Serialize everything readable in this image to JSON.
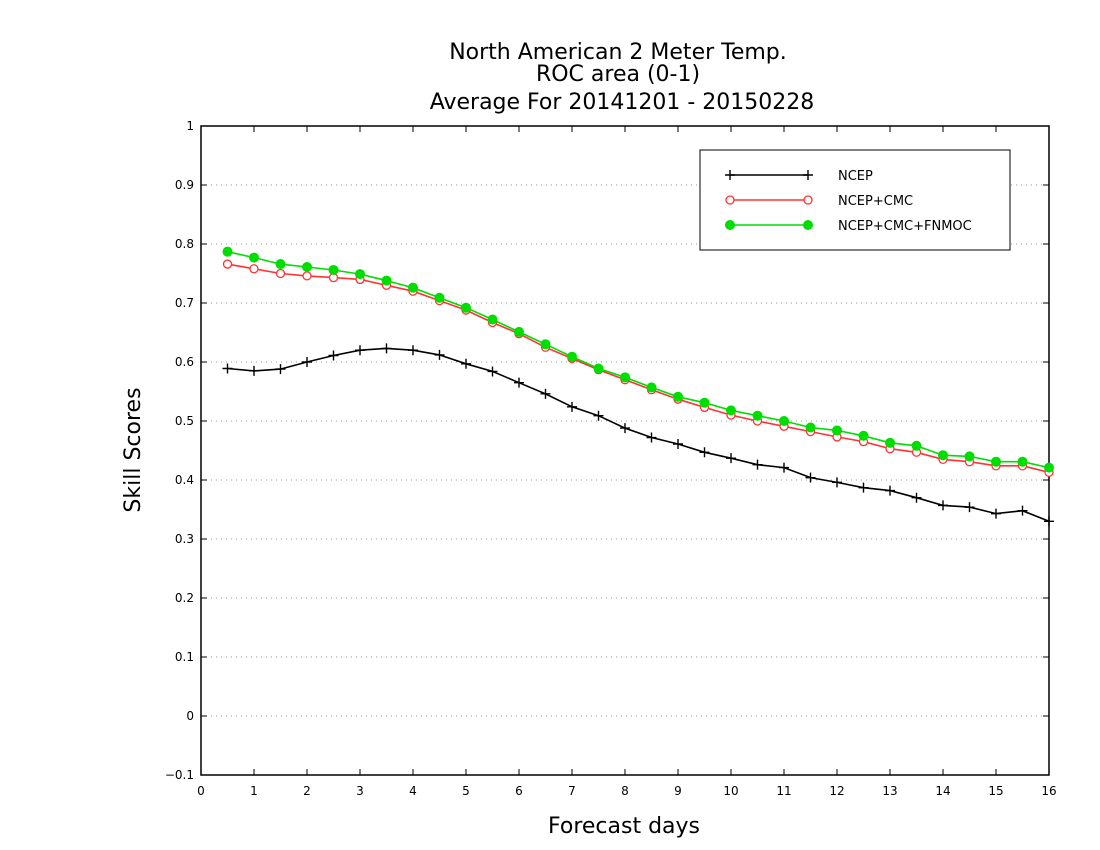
{
  "chart_data": {
    "type": "line",
    "title_lines": [
      "North American 2 Meter Temp.",
      "ROC area (0-1)",
      "Average For 20141201 - 20150228"
    ],
    "xlabel": "Forecast days",
    "ylabel": "Skill Scores",
    "xlim": [
      0,
      16
    ],
    "ylim": [
      -0.1,
      1
    ],
    "xticks": [
      "0",
      "1",
      "2",
      "3",
      "4",
      "5",
      "6",
      "7",
      "8",
      "9",
      "10",
      "11",
      "12",
      "13",
      "14",
      "15",
      "16"
    ],
    "yticks": [
      "−0.1",
      "0",
      "0.1",
      "0.2",
      "0.3",
      "0.4",
      "0.5",
      "0.6",
      "0.7",
      "0.8",
      "0.9",
      "1"
    ],
    "grid": "horizontal dotted",
    "legend_position": "top-right",
    "x": [
      0.5,
      1,
      1.5,
      2,
      2.5,
      3,
      3.5,
      4,
      4.5,
      5,
      5.5,
      6,
      6.5,
      7,
      7.5,
      8,
      8.5,
      9,
      9.5,
      10,
      10.5,
      11,
      11.5,
      12,
      12.5,
      13,
      13.5,
      14,
      14.5,
      15,
      15.5,
      16
    ],
    "series": [
      {
        "name": "NCEP",
        "color": "#000000",
        "marker": "plus",
        "values": [
          0.589,
          0.585,
          0.588,
          0.6,
          0.611,
          0.62,
          0.623,
          0.62,
          0.612,
          0.597,
          0.584,
          0.565,
          0.546,
          0.524,
          0.509,
          0.488,
          0.472,
          0.461,
          0.447,
          0.437,
          0.426,
          0.421,
          0.404,
          0.396,
          0.387,
          0.382,
          0.37,
          0.357,
          0.354,
          0.343,
          0.348,
          0.33
        ]
      },
      {
        "name": "NCEP+CMC",
        "color": "#ff3333",
        "marker": "open-circle",
        "values": [
          0.766,
          0.758,
          0.75,
          0.746,
          0.743,
          0.74,
          0.73,
          0.72,
          0.704,
          0.688,
          0.667,
          0.648,
          0.625,
          0.606,
          0.587,
          0.57,
          0.553,
          0.537,
          0.523,
          0.51,
          0.5,
          0.491,
          0.482,
          0.473,
          0.465,
          0.453,
          0.447,
          0.435,
          0.431,
          0.424,
          0.424,
          0.413
        ]
      },
      {
        "name": "NCEP+CMC+FNMOC",
        "color": "#00dd00",
        "marker": "filled-circle",
        "values": [
          0.787,
          0.777,
          0.766,
          0.761,
          0.756,
          0.749,
          0.738,
          0.726,
          0.709,
          0.692,
          0.672,
          0.651,
          0.63,
          0.609,
          0.589,
          0.574,
          0.557,
          0.541,
          0.531,
          0.518,
          0.509,
          0.5,
          0.489,
          0.484,
          0.475,
          0.463,
          0.458,
          0.442,
          0.44,
          0.431,
          0.431,
          0.421
        ]
      }
    ]
  }
}
